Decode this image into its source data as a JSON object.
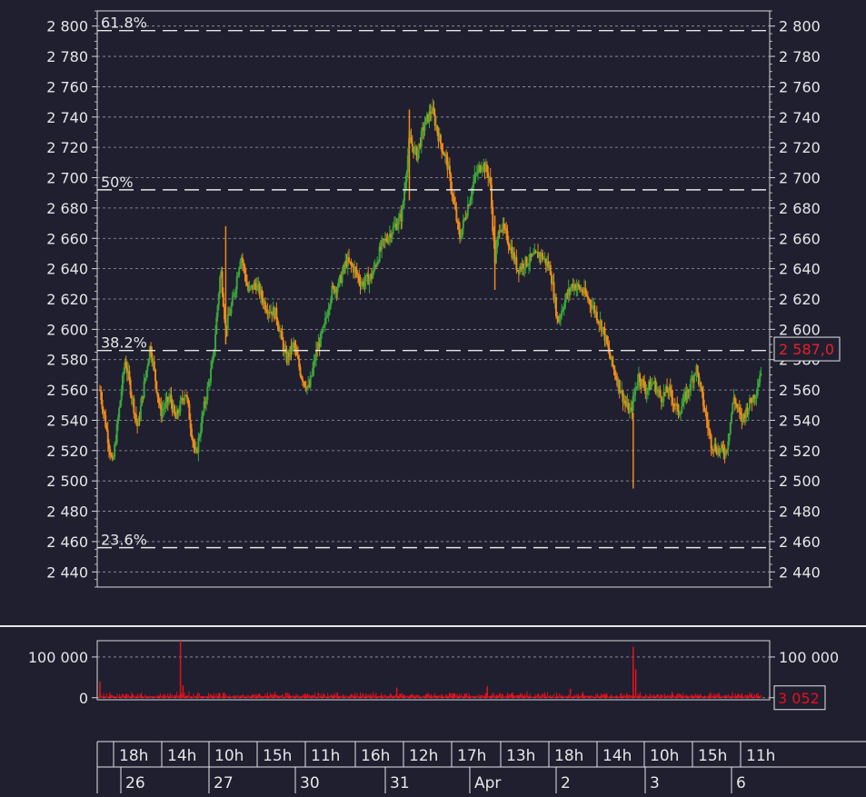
{
  "chart_data": [
    {
      "type": "candlestick",
      "ylim": [
        2430,
        2810
      ],
      "y_ticks": [
        2440,
        2460,
        2480,
        2500,
        2520,
        2540,
        2560,
        2580,
        2600,
        2620,
        2640,
        2660,
        2680,
        2700,
        2720,
        2740,
        2760,
        2780,
        2800
      ],
      "y_tick_labels": [
        "2 440",
        "2 460",
        "2 480",
        "2 500",
        "2 520",
        "2 540",
        "2 560",
        "2 580",
        "2 600",
        "2 620",
        "2 640",
        "2 660",
        "2 680",
        "2 700",
        "2 720",
        "2 740",
        "2 760",
        "2 780",
        "2 800"
      ],
      "grid": true,
      "up_color": "#3aa63a",
      "down_color": "#f08a1a",
      "fibonacci_levels": [
        {
          "label": "61.8%",
          "value": 2797
        },
        {
          "label": "50%",
          "value": 2692
        },
        {
          "label": "38.2%",
          "value": 2586
        },
        {
          "label": "23.6%",
          "value": 2456
        }
      ],
      "last_price": {
        "text": "2 587,0",
        "value": 2587,
        "color": "#e8202a"
      },
      "price_path": [
        {
          "x": 0.0,
          "y": 2560
        },
        {
          "x": 0.5,
          "y": 2510
        },
        {
          "x": 1.0,
          "y": 2580
        },
        {
          "x": 1.5,
          "y": 2535
        },
        {
          "x": 2.0,
          "y": 2590
        },
        {
          "x": 2.4,
          "y": 2545
        },
        {
          "x": 2.8,
          "y": 2555
        },
        {
          "x": 3.0,
          "y": 2540
        },
        {
          "x": 3.4,
          "y": 2560
        },
        {
          "x": 3.8,
          "y": 2515
        },
        {
          "x": 4.1,
          "y": 2545
        },
        {
          "x": 4.5,
          "y": 2580
        },
        {
          "x": 4.8,
          "y": 2640
        },
        {
          "x": 5.0,
          "y": 2600
        },
        {
          "x": 5.3,
          "y": 2620
        },
        {
          "x": 5.6,
          "y": 2650
        },
        {
          "x": 5.9,
          "y": 2625
        },
        {
          "x": 6.2,
          "y": 2630
        },
        {
          "x": 6.6,
          "y": 2615
        },
        {
          "x": 7.0,
          "y": 2610
        },
        {
          "x": 7.4,
          "y": 2580
        },
        {
          "x": 7.7,
          "y": 2590
        },
        {
          "x": 8.0,
          "y": 2570
        },
        {
          "x": 8.3,
          "y": 2560
        },
        {
          "x": 8.6,
          "y": 2585
        },
        {
          "x": 8.9,
          "y": 2600
        },
        {
          "x": 9.2,
          "y": 2625
        },
        {
          "x": 9.5,
          "y": 2630
        },
        {
          "x": 9.8,
          "y": 2645
        },
        {
          "x": 10.1,
          "y": 2640
        },
        {
          "x": 10.4,
          "y": 2630
        },
        {
          "x": 10.8,
          "y": 2635
        },
        {
          "x": 11.2,
          "y": 2655
        },
        {
          "x": 11.6,
          "y": 2665
        },
        {
          "x": 12.0,
          "y": 2675
        },
        {
          "x": 12.3,
          "y": 2725
        },
        {
          "x": 12.6,
          "y": 2715
        },
        {
          "x": 12.9,
          "y": 2735
        },
        {
          "x": 13.2,
          "y": 2745
        },
        {
          "x": 13.5,
          "y": 2725
        },
        {
          "x": 13.8,
          "y": 2710
        },
        {
          "x": 14.0,
          "y": 2690
        },
        {
          "x": 14.3,
          "y": 2660
        },
        {
          "x": 14.6,
          "y": 2680
        },
        {
          "x": 14.9,
          "y": 2700
        },
        {
          "x": 15.2,
          "y": 2710
        },
        {
          "x": 15.5,
          "y": 2700
        },
        {
          "x": 15.7,
          "y": 2645
        },
        {
          "x": 15.9,
          "y": 2670
        },
        {
          "x": 16.2,
          "y": 2660
        },
        {
          "x": 16.6,
          "y": 2640
        },
        {
          "x": 17.0,
          "y": 2645
        },
        {
          "x": 17.5,
          "y": 2650
        },
        {
          "x": 17.9,
          "y": 2640
        },
        {
          "x": 18.2,
          "y": 2605
        },
        {
          "x": 18.5,
          "y": 2620
        },
        {
          "x": 18.8,
          "y": 2630
        },
        {
          "x": 19.2,
          "y": 2625
        },
        {
          "x": 19.6,
          "y": 2615
        },
        {
          "x": 20.0,
          "y": 2600
        },
        {
          "x": 20.3,
          "y": 2580
        },
        {
          "x": 20.6,
          "y": 2565
        },
        {
          "x": 20.9,
          "y": 2550
        },
        {
          "x": 21.1,
          "y": 2545
        },
        {
          "x": 21.4,
          "y": 2570
        },
        {
          "x": 21.7,
          "y": 2560
        },
        {
          "x": 22.0,
          "y": 2565
        },
        {
          "x": 22.3,
          "y": 2555
        },
        {
          "x": 22.6,
          "y": 2560
        },
        {
          "x": 23.0,
          "y": 2545
        },
        {
          "x": 23.4,
          "y": 2560
        },
        {
          "x": 23.7,
          "y": 2575
        },
        {
          "x": 24.0,
          "y": 2550
        },
        {
          "x": 24.3,
          "y": 2525
        },
        {
          "x": 24.6,
          "y": 2520
        },
        {
          "x": 24.9,
          "y": 2520
        },
        {
          "x": 25.2,
          "y": 2555
        },
        {
          "x": 25.5,
          "y": 2540
        },
        {
          "x": 25.8,
          "y": 2550
        },
        {
          "x": 26.1,
          "y": 2560
        },
        {
          "x": 26.3,
          "y": 2575
        }
      ],
      "spikes": [
        {
          "x": 21.2,
          "high": 2545,
          "low": 2495
        },
        {
          "x": 12.3,
          "high": 2745,
          "low": 2685
        },
        {
          "x": 5.0,
          "high": 2668,
          "low": 2590
        },
        {
          "x": 15.7,
          "high": 2675,
          "low": 2626
        }
      ]
    },
    {
      "type": "bar",
      "ylim": [
        -5000,
        140000
      ],
      "y_ticks": [
        0,
        100000
      ],
      "y_tick_labels": [
        "0",
        "100 000"
      ],
      "color": "#e8101a",
      "last_value": {
        "text": "3 052",
        "value": 3052
      },
      "spikes": [
        {
          "x": 0.0,
          "value": 40000
        },
        {
          "x": 3.2,
          "value": 150000
        },
        {
          "x": 3.3,
          "value": 30000
        },
        {
          "x": 21.2,
          "value": 125000
        },
        {
          "x": 21.3,
          "value": 70000
        },
        {
          "x": 11.8,
          "value": 25000
        },
        {
          "x": 15.4,
          "value": 28000
        },
        {
          "x": 18.7,
          "value": 22000
        }
      ]
    }
  ],
  "time_axis": {
    "hours": [
      "18h",
      "14h",
      "10h",
      "15h",
      "11h",
      "16h",
      "12h",
      "17h",
      "13h",
      "18h",
      "14h",
      "10h",
      "15h",
      "11h"
    ],
    "dates": [
      "26",
      "27",
      "30",
      "31",
      "Apr",
      "2",
      "3",
      "6"
    ]
  }
}
